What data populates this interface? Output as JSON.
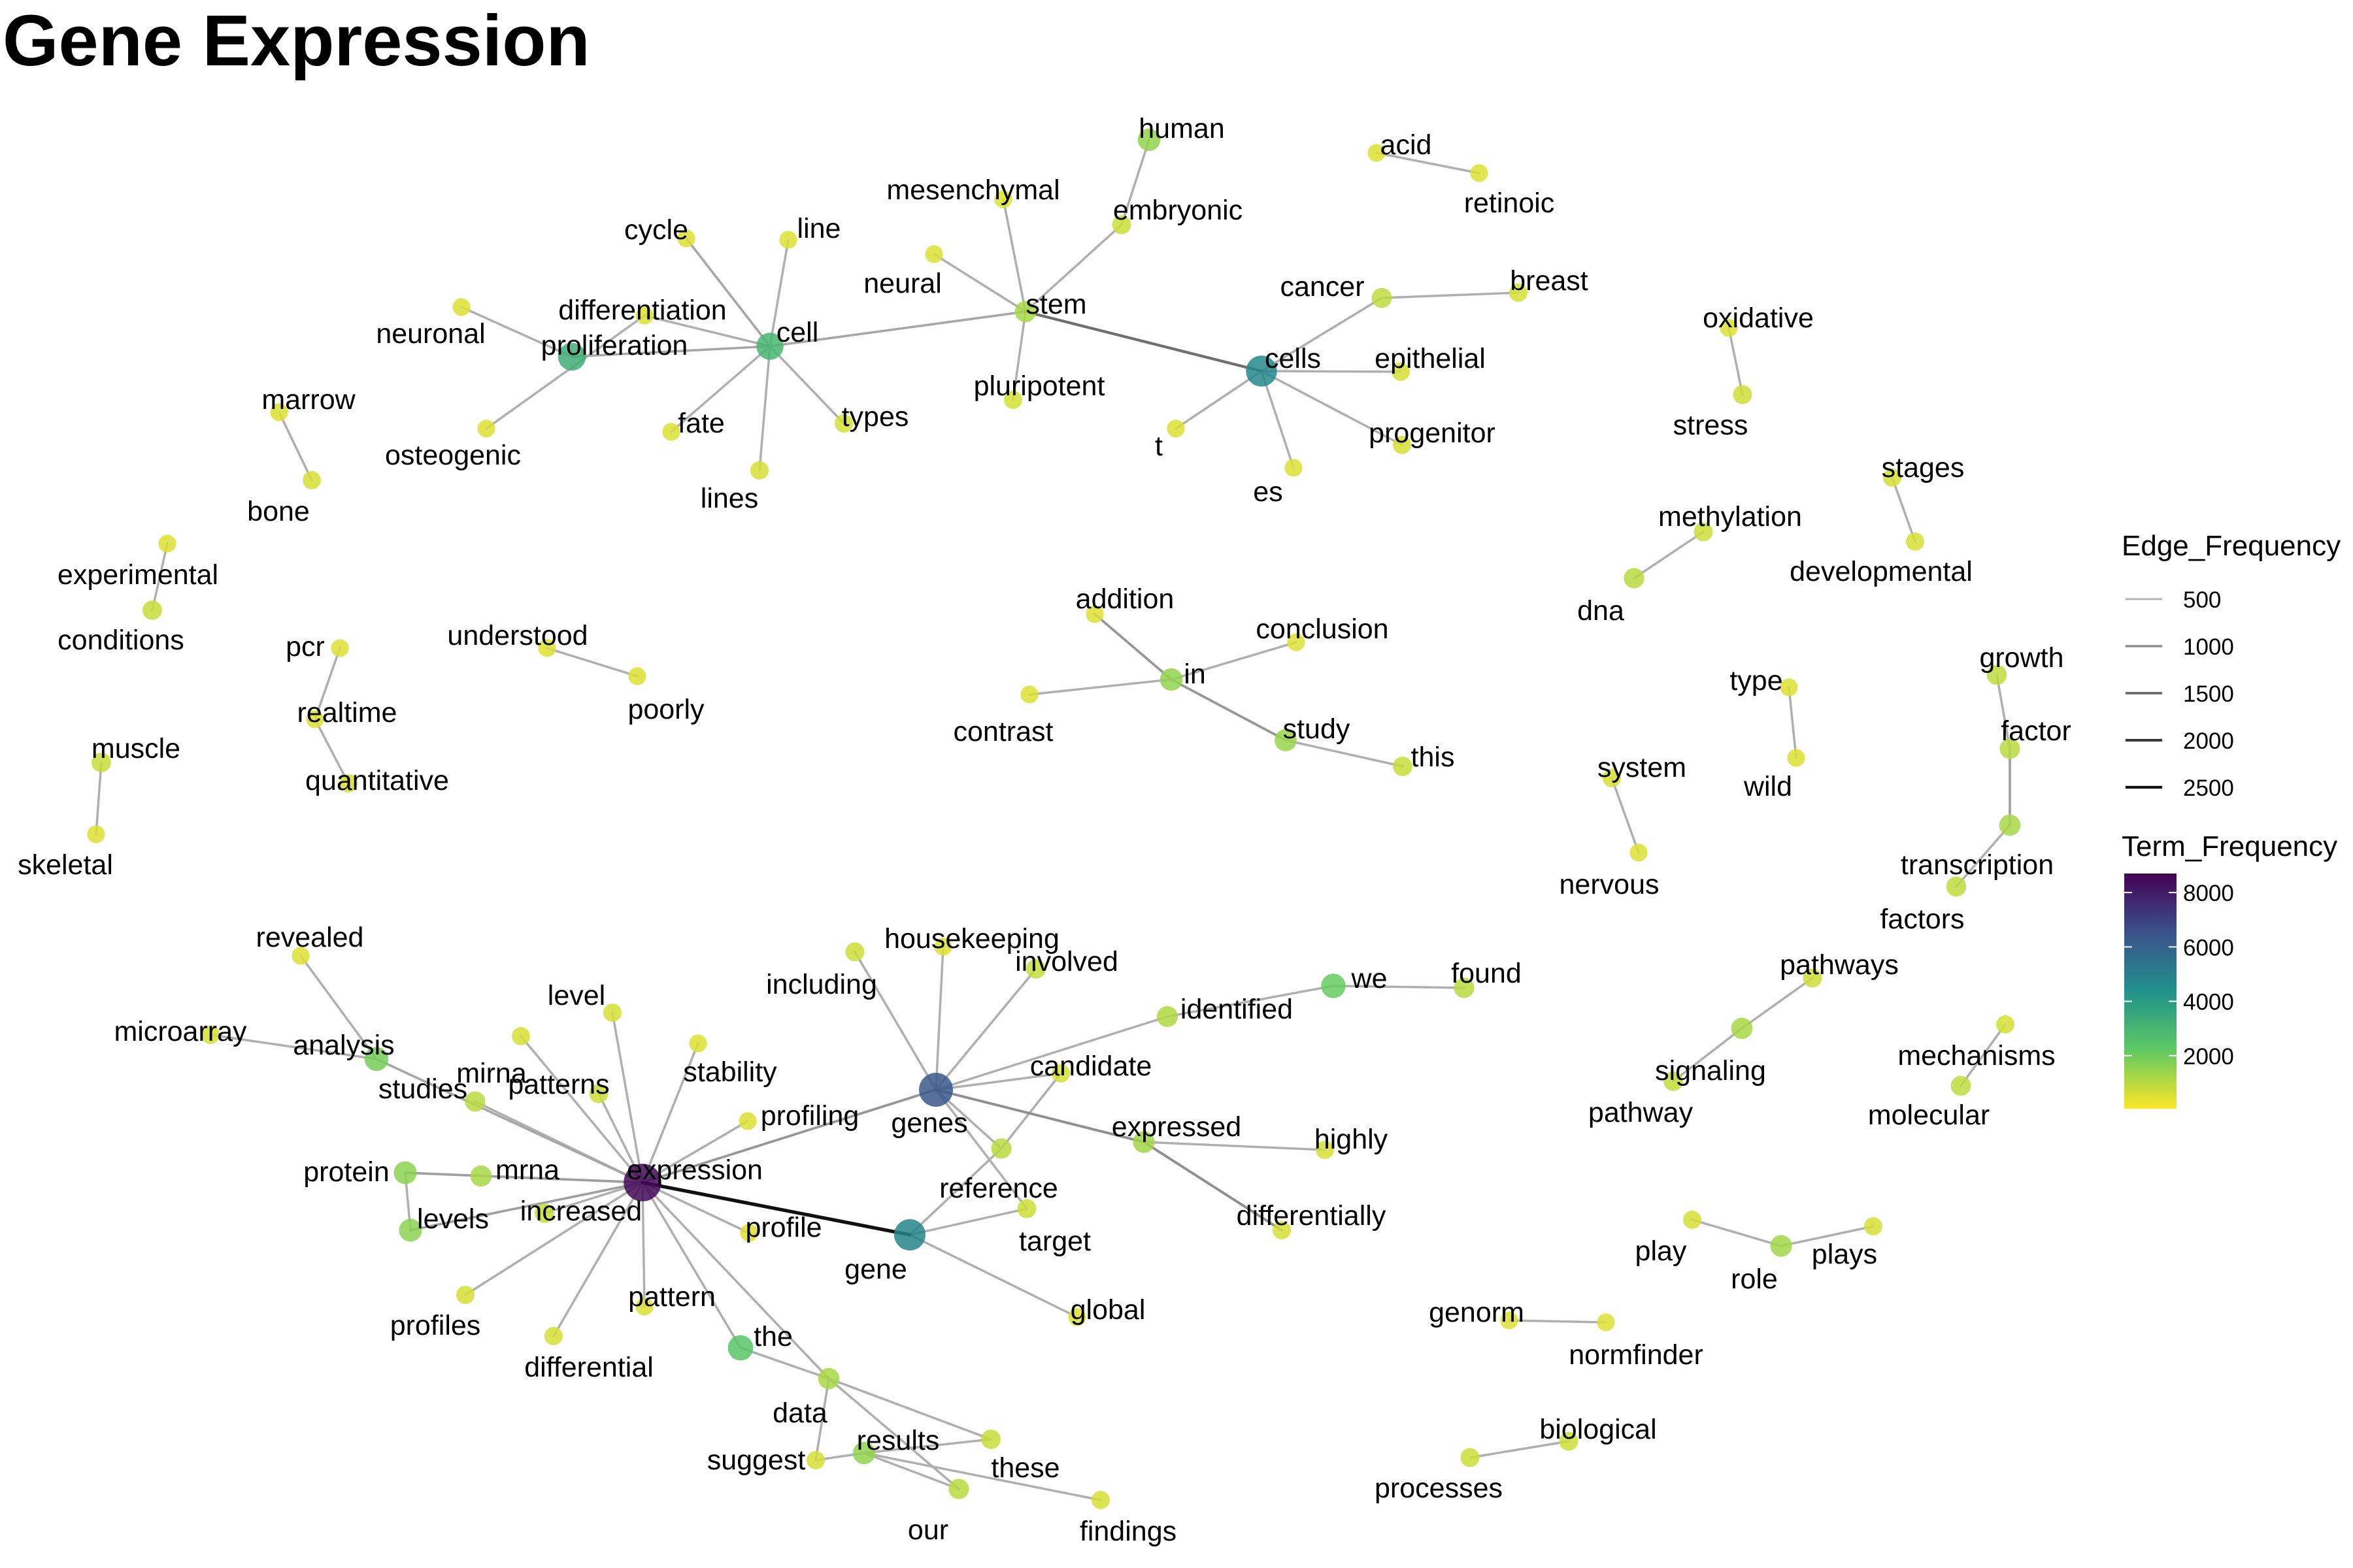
{
  "title": "Gene Expression",
  "legend": {
    "edge_title": "Edge_Frequency",
    "edge_values": [
      "500",
      "1000",
      "1500",
      "2000",
      "2500"
    ],
    "term_title": "Term_Frequency",
    "term_ticks": [
      "8000",
      "6000",
      "4000",
      "2000"
    ],
    "term_tick_values": [
      8000,
      6000,
      4000,
      2000
    ],
    "term_range": [
      50,
      8700
    ],
    "edge_range": [
      0,
      2700
    ],
    "colors": [
      "#440154",
      "#3b528b",
      "#21918c",
      "#5ec962",
      "#fde725"
    ]
  },
  "terms": [
    {
      "id": "expression",
      "freq": 8500
    },
    {
      "id": "genes",
      "freq": 6300
    },
    {
      "id": "gene",
      "freq": 4900
    },
    {
      "id": "cells",
      "freq": 4700
    },
    {
      "id": "proliferation",
      "freq": 3300
    },
    {
      "id": "cell",
      "freq": 3000
    },
    {
      "id": "the",
      "freq": 2400
    },
    {
      "id": "we",
      "freq": 2100
    },
    {
      "id": "analysis",
      "freq": 1900
    },
    {
      "id": "protein",
      "freq": 1600
    },
    {
      "id": "levels",
      "freq": 1600
    },
    {
      "id": "human",
      "freq": 1500
    },
    {
      "id": "results",
      "freq": 1500
    },
    {
      "id": "in",
      "freq": 1500
    },
    {
      "id": "study",
      "freq": 1400
    },
    {
      "id": "role",
      "freq": 1300
    },
    {
      "id": "expressed",
      "freq": 1300
    },
    {
      "id": "signaling",
      "freq": 1200
    },
    {
      "id": "transcription",
      "freq": 1200
    },
    {
      "id": "stem",
      "freq": 1200
    },
    {
      "id": "data",
      "freq": 1200
    },
    {
      "id": "mrna",
      "freq": 1200
    },
    {
      "id": "identified",
      "freq": 1100
    },
    {
      "id": "studies",
      "freq": 1000
    },
    {
      "id": "our",
      "freq": 1000
    },
    {
      "id": "dna",
      "freq": 1000
    },
    {
      "id": "reference",
      "freq": 1000
    },
    {
      "id": "found",
      "freq": 1000
    },
    {
      "id": "factor",
      "freq": 1000
    },
    {
      "id": "molecular",
      "freq": 900
    },
    {
      "id": "cancer",
      "freq": 900
    },
    {
      "id": "growth",
      "freq": 900
    },
    {
      "id": "factors",
      "freq": 900
    },
    {
      "id": "pathway",
      "freq": 800
    },
    {
      "id": "these",
      "freq": 800
    },
    {
      "id": "conditions",
      "freq": 800
    },
    {
      "id": "muscle",
      "freq": 800
    },
    {
      "id": "this",
      "freq": 800
    },
    {
      "id": "involved",
      "freq": 800
    },
    {
      "id": "increased",
      "freq": 800
    },
    {
      "id": "including",
      "freq": 700
    },
    {
      "id": "embryonic",
      "freq": 700
    },
    {
      "id": "patterns",
      "freq": 700
    },
    {
      "id": "target",
      "freq": 700
    },
    {
      "id": "pathways",
      "freq": 700
    },
    {
      "id": "stress",
      "freq": 700
    },
    {
      "id": "processes",
      "freq": 700
    },
    {
      "id": "biological",
      "freq": 700
    },
    {
      "id": "methylation",
      "freq": 700
    },
    {
      "id": "findings",
      "freq": 600
    },
    {
      "id": "suggest",
      "freq": 600
    },
    {
      "id": "candidate",
      "freq": 600
    },
    {
      "id": "highly",
      "freq": 600
    },
    {
      "id": "differentially",
      "freq": 600
    },
    {
      "id": "profiles",
      "freq": 600
    },
    {
      "id": "differential",
      "freq": 600
    },
    {
      "id": "microarray",
      "freq": 600
    },
    {
      "id": "mirna",
      "freq": 600
    },
    {
      "id": "level",
      "freq": 600
    },
    {
      "id": "progenitor",
      "freq": 600
    },
    {
      "id": "breast",
      "freq": 600
    },
    {
      "id": "epithelial",
      "freq": 600
    },
    {
      "id": "quantitative",
      "freq": 600
    },
    {
      "id": "system",
      "freq": 600
    },
    {
      "id": "developmental",
      "freq": 600
    },
    {
      "id": "stages",
      "freq": 600
    },
    {
      "id": "bone",
      "freq": 600
    },
    {
      "id": "types",
      "freq": 600
    },
    {
      "id": "lines",
      "freq": 600
    },
    {
      "id": "pluripotent",
      "freq": 600
    },
    {
      "id": "play",
      "freq": 600
    },
    {
      "id": "plays",
      "freq": 600
    },
    {
      "id": "mechanisms",
      "freq": 600
    },
    {
      "id": "type",
      "freq": 500
    },
    {
      "id": "wild",
      "freq": 500
    },
    {
      "id": "contrast",
      "freq": 500
    },
    {
      "id": "addition",
      "freq": 500
    },
    {
      "id": "conclusion",
      "freq": 500
    },
    {
      "id": "pcr",
      "freq": 500
    },
    {
      "id": "realtime",
      "freq": 500
    },
    {
      "id": "skeletal",
      "freq": 500
    },
    {
      "id": "experimental",
      "freq": 500
    },
    {
      "id": "marrow",
      "freq": 500
    },
    {
      "id": "understood",
      "freq": 500
    },
    {
      "id": "poorly",
      "freq": 500
    },
    {
      "id": "neuronal",
      "freq": 500
    },
    {
      "id": "differentiation",
      "freq": 500
    },
    {
      "id": "osteogenic",
      "freq": 500
    },
    {
      "id": "fate",
      "freq": 500
    },
    {
      "id": "cycle",
      "freq": 500
    },
    {
      "id": "line",
      "freq": 500
    },
    {
      "id": "neural",
      "freq": 500
    },
    {
      "id": "mesenchymal",
      "freq": 500
    },
    {
      "id": "acid",
      "freq": 500
    },
    {
      "id": "retinoic",
      "freq": 500
    },
    {
      "id": "oxidative",
      "freq": 500
    },
    {
      "id": "t",
      "freq": 500
    },
    {
      "id": "es",
      "freq": 500
    },
    {
      "id": "nervous",
      "freq": 500
    },
    {
      "id": "housekeeping",
      "freq": 500
    },
    {
      "id": "stability",
      "freq": 500
    },
    {
      "id": "profiling",
      "freq": 500
    },
    {
      "id": "profile",
      "freq": 500
    },
    {
      "id": "pattern",
      "freq": 500
    },
    {
      "id": "revealed",
      "freq": 500
    },
    {
      "id": "global",
      "freq": 500
    },
    {
      "id": "genorm",
      "freq": 500
    },
    {
      "id": "normfinder",
      "freq": 500
    }
  ],
  "edges": [
    {
      "from": "gene",
      "to": "expression",
      "freq": 2500
    },
    {
      "from": "stem",
      "to": "cells",
      "freq": 1300
    },
    {
      "from": "genes",
      "to": "expressed",
      "freq": 900
    },
    {
      "from": "expressed",
      "to": "differentially",
      "freq": 900
    },
    {
      "from": "in",
      "to": "study",
      "freq": 800
    },
    {
      "from": "in",
      "to": "addition",
      "freq": 800
    },
    {
      "from": "expression",
      "to": "genes",
      "freq": 800
    },
    {
      "from": "expression",
      "to": "levels",
      "freq": 700
    },
    {
      "from": "expression",
      "to": "protein",
      "freq": 700
    },
    {
      "from": "transcription",
      "to": "factor",
      "freq": 700
    },
    {
      "from": "cell",
      "to": "stem",
      "freq": 600
    },
    {
      "from": "cell",
      "to": "cycle",
      "freq": 600
    },
    {
      "from": "cell",
      "to": "proliferation",
      "freq": 600
    },
    {
      "from": "expression",
      "to": "analysis",
      "freq": 600
    },
    {
      "from": "gene",
      "to": "global",
      "freq": 500
    },
    {
      "from": "expression",
      "to": "the",
      "freq": 500
    },
    {
      "from": "expression",
      "to": "increased",
      "freq": 500
    },
    {
      "from": "expression",
      "to": "mrna",
      "freq": 500
    },
    {
      "from": "expression",
      "to": "patterns",
      "freq": 500
    },
    {
      "from": "expression",
      "to": "mirna",
      "freq": 500
    },
    {
      "from": "expression",
      "to": "level",
      "freq": 500
    },
    {
      "from": "expression",
      "to": "stability",
      "freq": 500
    },
    {
      "from": "expression",
      "to": "profiling",
      "freq": 500
    },
    {
      "from": "expression",
      "to": "profile",
      "freq": 500
    },
    {
      "from": "expression",
      "to": "profiles",
      "freq": 500
    },
    {
      "from": "expression",
      "to": "differential",
      "freq": 500
    },
    {
      "from": "expression",
      "to": "pattern",
      "freq": 500
    },
    {
      "from": "expression",
      "to": "studies",
      "freq": 500
    },
    {
      "from": "expression",
      "to": "data",
      "freq": 500
    },
    {
      "from": "analysis",
      "to": "microarray",
      "freq": 500
    },
    {
      "from": "analysis",
      "to": "revealed",
      "freq": 500
    },
    {
      "from": "protein",
      "to": "levels",
      "freq": 500
    },
    {
      "from": "genes",
      "to": "including",
      "freq": 500
    },
    {
      "from": "genes",
      "to": "housekeeping",
      "freq": 500
    },
    {
      "from": "genes",
      "to": "involved",
      "freq": 500
    },
    {
      "from": "genes",
      "to": "candidate",
      "freq": 500
    },
    {
      "from": "genes",
      "to": "reference",
      "freq": 500
    },
    {
      "from": "genes",
      "to": "target",
      "freq": 500
    },
    {
      "from": "genes",
      "to": "identified",
      "freq": 500
    },
    {
      "from": "identified",
      "to": "we",
      "freq": 500
    },
    {
      "from": "we",
      "to": "found",
      "freq": 500
    },
    {
      "from": "expressed",
      "to": "highly",
      "freq": 500
    },
    {
      "from": "reference",
      "to": "candidate",
      "freq": 500
    },
    {
      "from": "reference",
      "to": "gene",
      "freq": 500
    },
    {
      "from": "gene",
      "to": "target",
      "freq": 500
    },
    {
      "from": "the",
      "to": "data",
      "freq": 500
    },
    {
      "from": "data",
      "to": "these",
      "freq": 500
    },
    {
      "from": "data",
      "to": "our",
      "freq": 500
    },
    {
      "from": "data",
      "to": "suggest",
      "freq": 500
    },
    {
      "from": "results",
      "to": "our",
      "freq": 500
    },
    {
      "from": "results",
      "to": "these",
      "freq": 500
    },
    {
      "from": "results",
      "to": "suggest",
      "freq": 500
    },
    {
      "from": "results",
      "to": "findings",
      "freq": 500
    },
    {
      "from": "cell",
      "to": "line",
      "freq": 500
    },
    {
      "from": "cell",
      "to": "lines",
      "freq": 500
    },
    {
      "from": "cell",
      "to": "types",
      "freq": 500
    },
    {
      "from": "cell",
      "to": "fate",
      "freq": 500
    },
    {
      "from": "cell",
      "to": "differentiation",
      "freq": 500
    },
    {
      "from": "proliferation",
      "to": "neuronal",
      "freq": 500
    },
    {
      "from": "differentiation",
      "to": "osteogenic",
      "freq": 500
    },
    {
      "from": "stem",
      "to": "neural",
      "freq": 500
    },
    {
      "from": "stem",
      "to": "mesenchymal",
      "freq": 500
    },
    {
      "from": "stem",
      "to": "embryonic",
      "freq": 500
    },
    {
      "from": "stem",
      "to": "pluripotent",
      "freq": 500
    },
    {
      "from": "embryonic",
      "to": "human",
      "freq": 500
    },
    {
      "from": "cells",
      "to": "cancer",
      "freq": 500
    },
    {
      "from": "cancer",
      "to": "breast",
      "freq": 500
    },
    {
      "from": "cells",
      "to": "epithelial",
      "freq": 500
    },
    {
      "from": "cells",
      "to": "progenitor",
      "freq": 500
    },
    {
      "from": "cells",
      "to": "t",
      "freq": 500
    },
    {
      "from": "cells",
      "to": "es",
      "freq": 500
    },
    {
      "from": "acid",
      "to": "retinoic",
      "freq": 500
    },
    {
      "from": "oxidative",
      "to": "stress",
      "freq": 500
    },
    {
      "from": "methylation",
      "to": "dna",
      "freq": 500
    },
    {
      "from": "stages",
      "to": "developmental",
      "freq": 500
    },
    {
      "from": "growth",
      "to": "factor",
      "freq": 500
    },
    {
      "from": "transcription",
      "to": "factors",
      "freq": 500
    },
    {
      "from": "type",
      "to": "wild",
      "freq": 500
    },
    {
      "from": "system",
      "to": "nervous",
      "freq": 500
    },
    {
      "from": "in",
      "to": "contrast",
      "freq": 500
    },
    {
      "from": "in",
      "to": "conclusion",
      "freq": 500
    },
    {
      "from": "study",
      "to": "this",
      "freq": 500
    },
    {
      "from": "signaling",
      "to": "pathways",
      "freq": 500
    },
    {
      "from": "signaling",
      "to": "pathway",
      "freq": 500
    },
    {
      "from": "molecular",
      "to": "mechanisms",
      "freq": 500
    },
    {
      "from": "role",
      "to": "play",
      "freq": 500
    },
    {
      "from": "role",
      "to": "plays",
      "freq": 500
    },
    {
      "from": "genorm",
      "to": "normfinder",
      "freq": 500
    },
    {
      "from": "biological",
      "to": "processes",
      "freq": 500
    },
    {
      "from": "marrow",
      "to": "bone",
      "freq": 500
    },
    {
      "from": "experimental",
      "to": "conditions",
      "freq": 500
    },
    {
      "from": "pcr",
      "to": "realtime",
      "freq": 500
    },
    {
      "from": "realtime",
      "to": "quantitative",
      "freq": 500
    },
    {
      "from": "muscle",
      "to": "skeletal",
      "freq": 500
    },
    {
      "from": "understood",
      "to": "poorly",
      "freq": 500
    }
  ]
}
